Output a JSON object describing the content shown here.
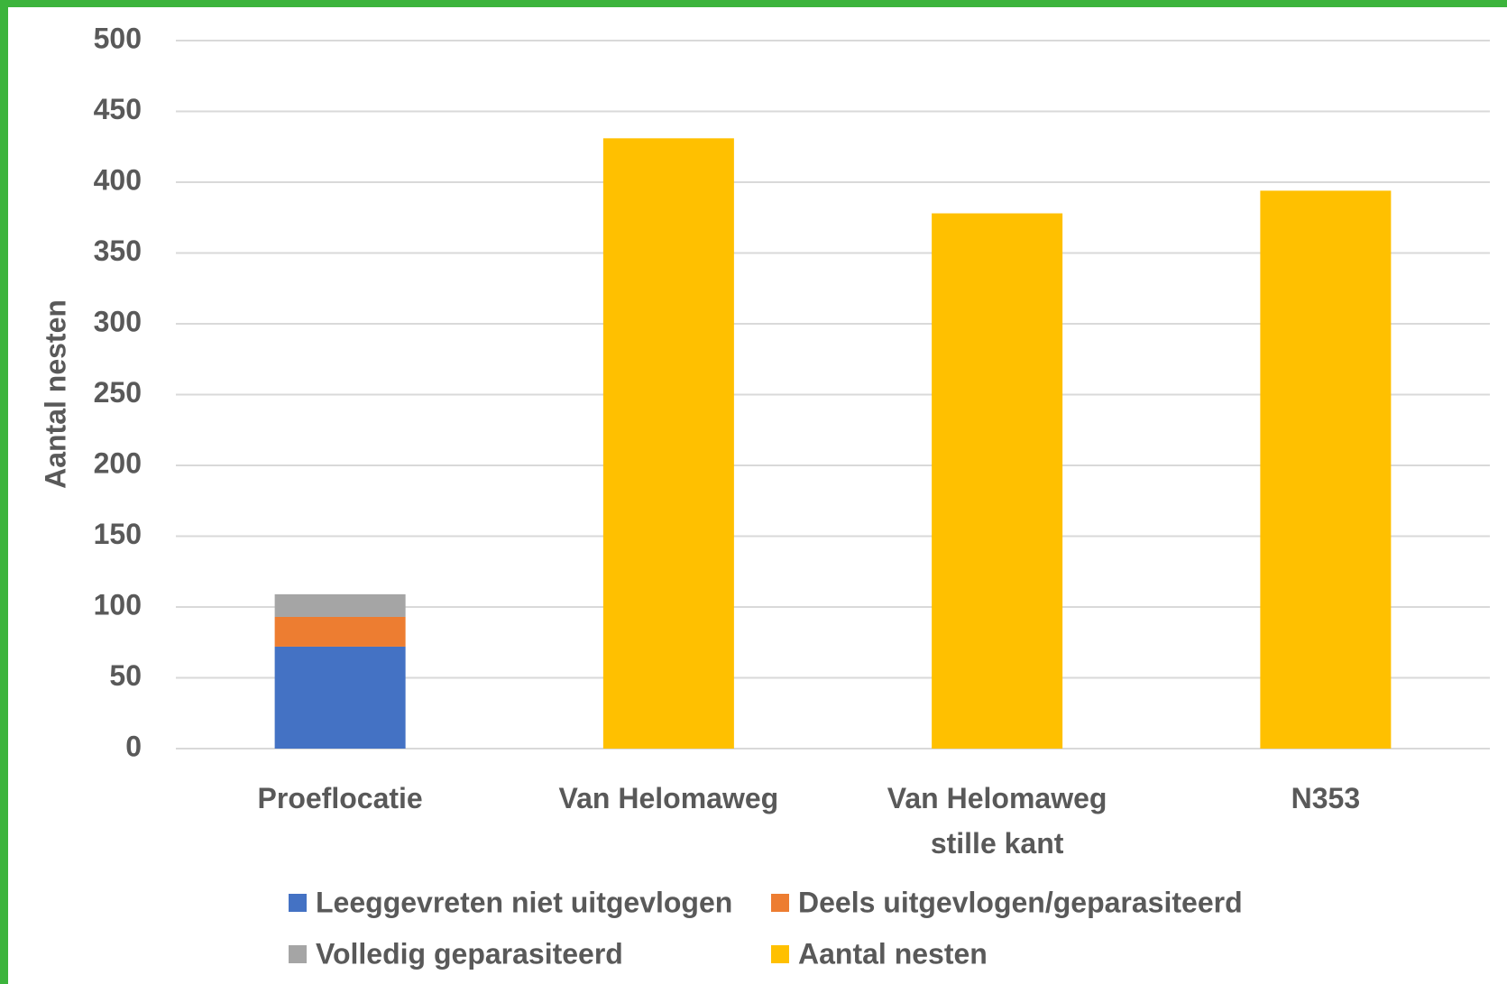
{
  "chart_data": {
    "type": "stacked_bar",
    "y_label": "Aantal nesten",
    "categories": [
      "Proeflocatie",
      "Van Helomaweg",
      "Van Helomaweg stille kant",
      "N353"
    ],
    "series": [
      {
        "name": "Leeggevreten niet uitgevlogen",
        "color": "#4472c4",
        "values": [
          72,
          null,
          null,
          null
        ]
      },
      {
        "name": "Deels uitgevlogen/geparasiteerd",
        "color": "#ed7d31",
        "values": [
          21,
          null,
          null,
          null
        ]
      },
      {
        "name": "Volledig geparasiteerd",
        "color": "#a5a5a5",
        "values": [
          16,
          null,
          null,
          null
        ]
      },
      {
        "name": "Aantal nesten",
        "color": "#ffc000",
        "values": [
          null,
          431,
          378,
          394
        ]
      }
    ],
    "ylim": [
      0,
      500
    ],
    "yticks": [
      0,
      50,
      100,
      150,
      200,
      250,
      300,
      350,
      400,
      450,
      500
    ],
    "grid": true,
    "legend": "bottom"
  }
}
